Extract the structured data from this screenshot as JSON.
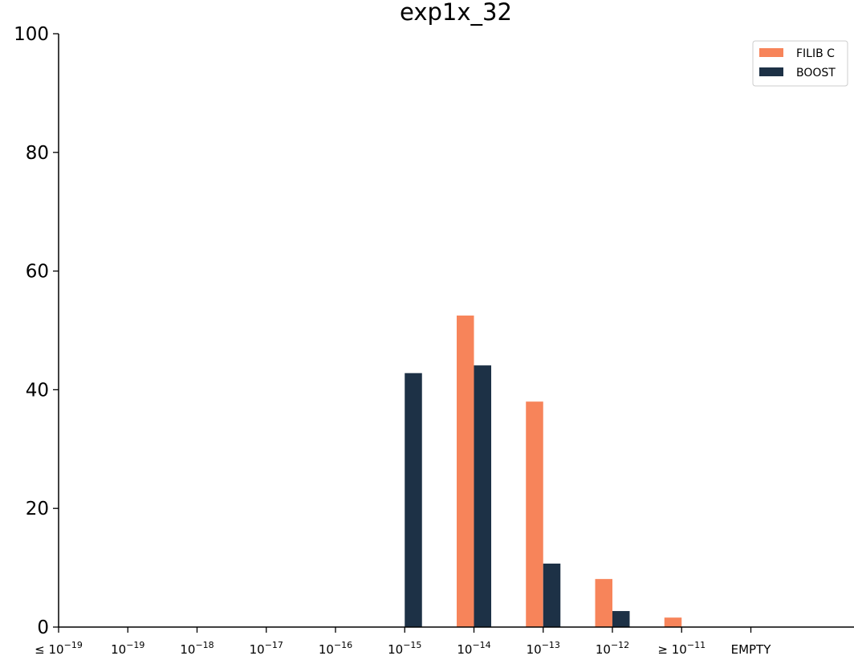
{
  "chart_data": {
    "type": "bar",
    "title": "exp1x_32",
    "xlabel": "",
    "ylabel": "",
    "ylim": [
      0,
      100
    ],
    "yticks": [
      0,
      20,
      40,
      60,
      80,
      100
    ],
    "categories": [
      {
        "base": "≤ 10",
        "exp": "−19"
      },
      {
        "base": "10",
        "exp": "−19"
      },
      {
        "base": "10",
        "exp": "−18"
      },
      {
        "base": "10",
        "exp": "−17"
      },
      {
        "base": "10",
        "exp": "−16"
      },
      {
        "base": "10",
        "exp": "−15"
      },
      {
        "base": "10",
        "exp": "−14"
      },
      {
        "base": "10",
        "exp": "−13"
      },
      {
        "base": "10",
        "exp": "−12"
      },
      {
        "base": "≥ 10",
        "exp": "−11"
      },
      {
        "base": "EMPTY",
        "exp": ""
      }
    ],
    "series": [
      {
        "name": "FILIB C",
        "color": "#f7845a",
        "values": [
          0,
          0,
          0,
          0,
          0,
          0,
          52.5,
          38.0,
          8.1,
          1.6,
          0
        ]
      },
      {
        "name": "BOOST",
        "color": "#1d3146",
        "values": [
          0,
          0,
          0,
          0,
          0,
          42.8,
          44.1,
          10.7,
          2.7,
          0,
          0
        ]
      }
    ],
    "legend": {
      "position": "top-right"
    },
    "grid": false
  }
}
